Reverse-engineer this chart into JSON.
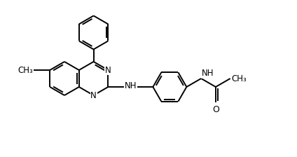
{
  "bg_color": "#ffffff",
  "line_color": "#000000",
  "line_width": 1.4,
  "font_size": 8.5,
  "fig_width": 4.24,
  "fig_height": 2.24,
  "xlim": [
    0,
    10.6
  ],
  "ylim": [
    0,
    5.6
  ]
}
